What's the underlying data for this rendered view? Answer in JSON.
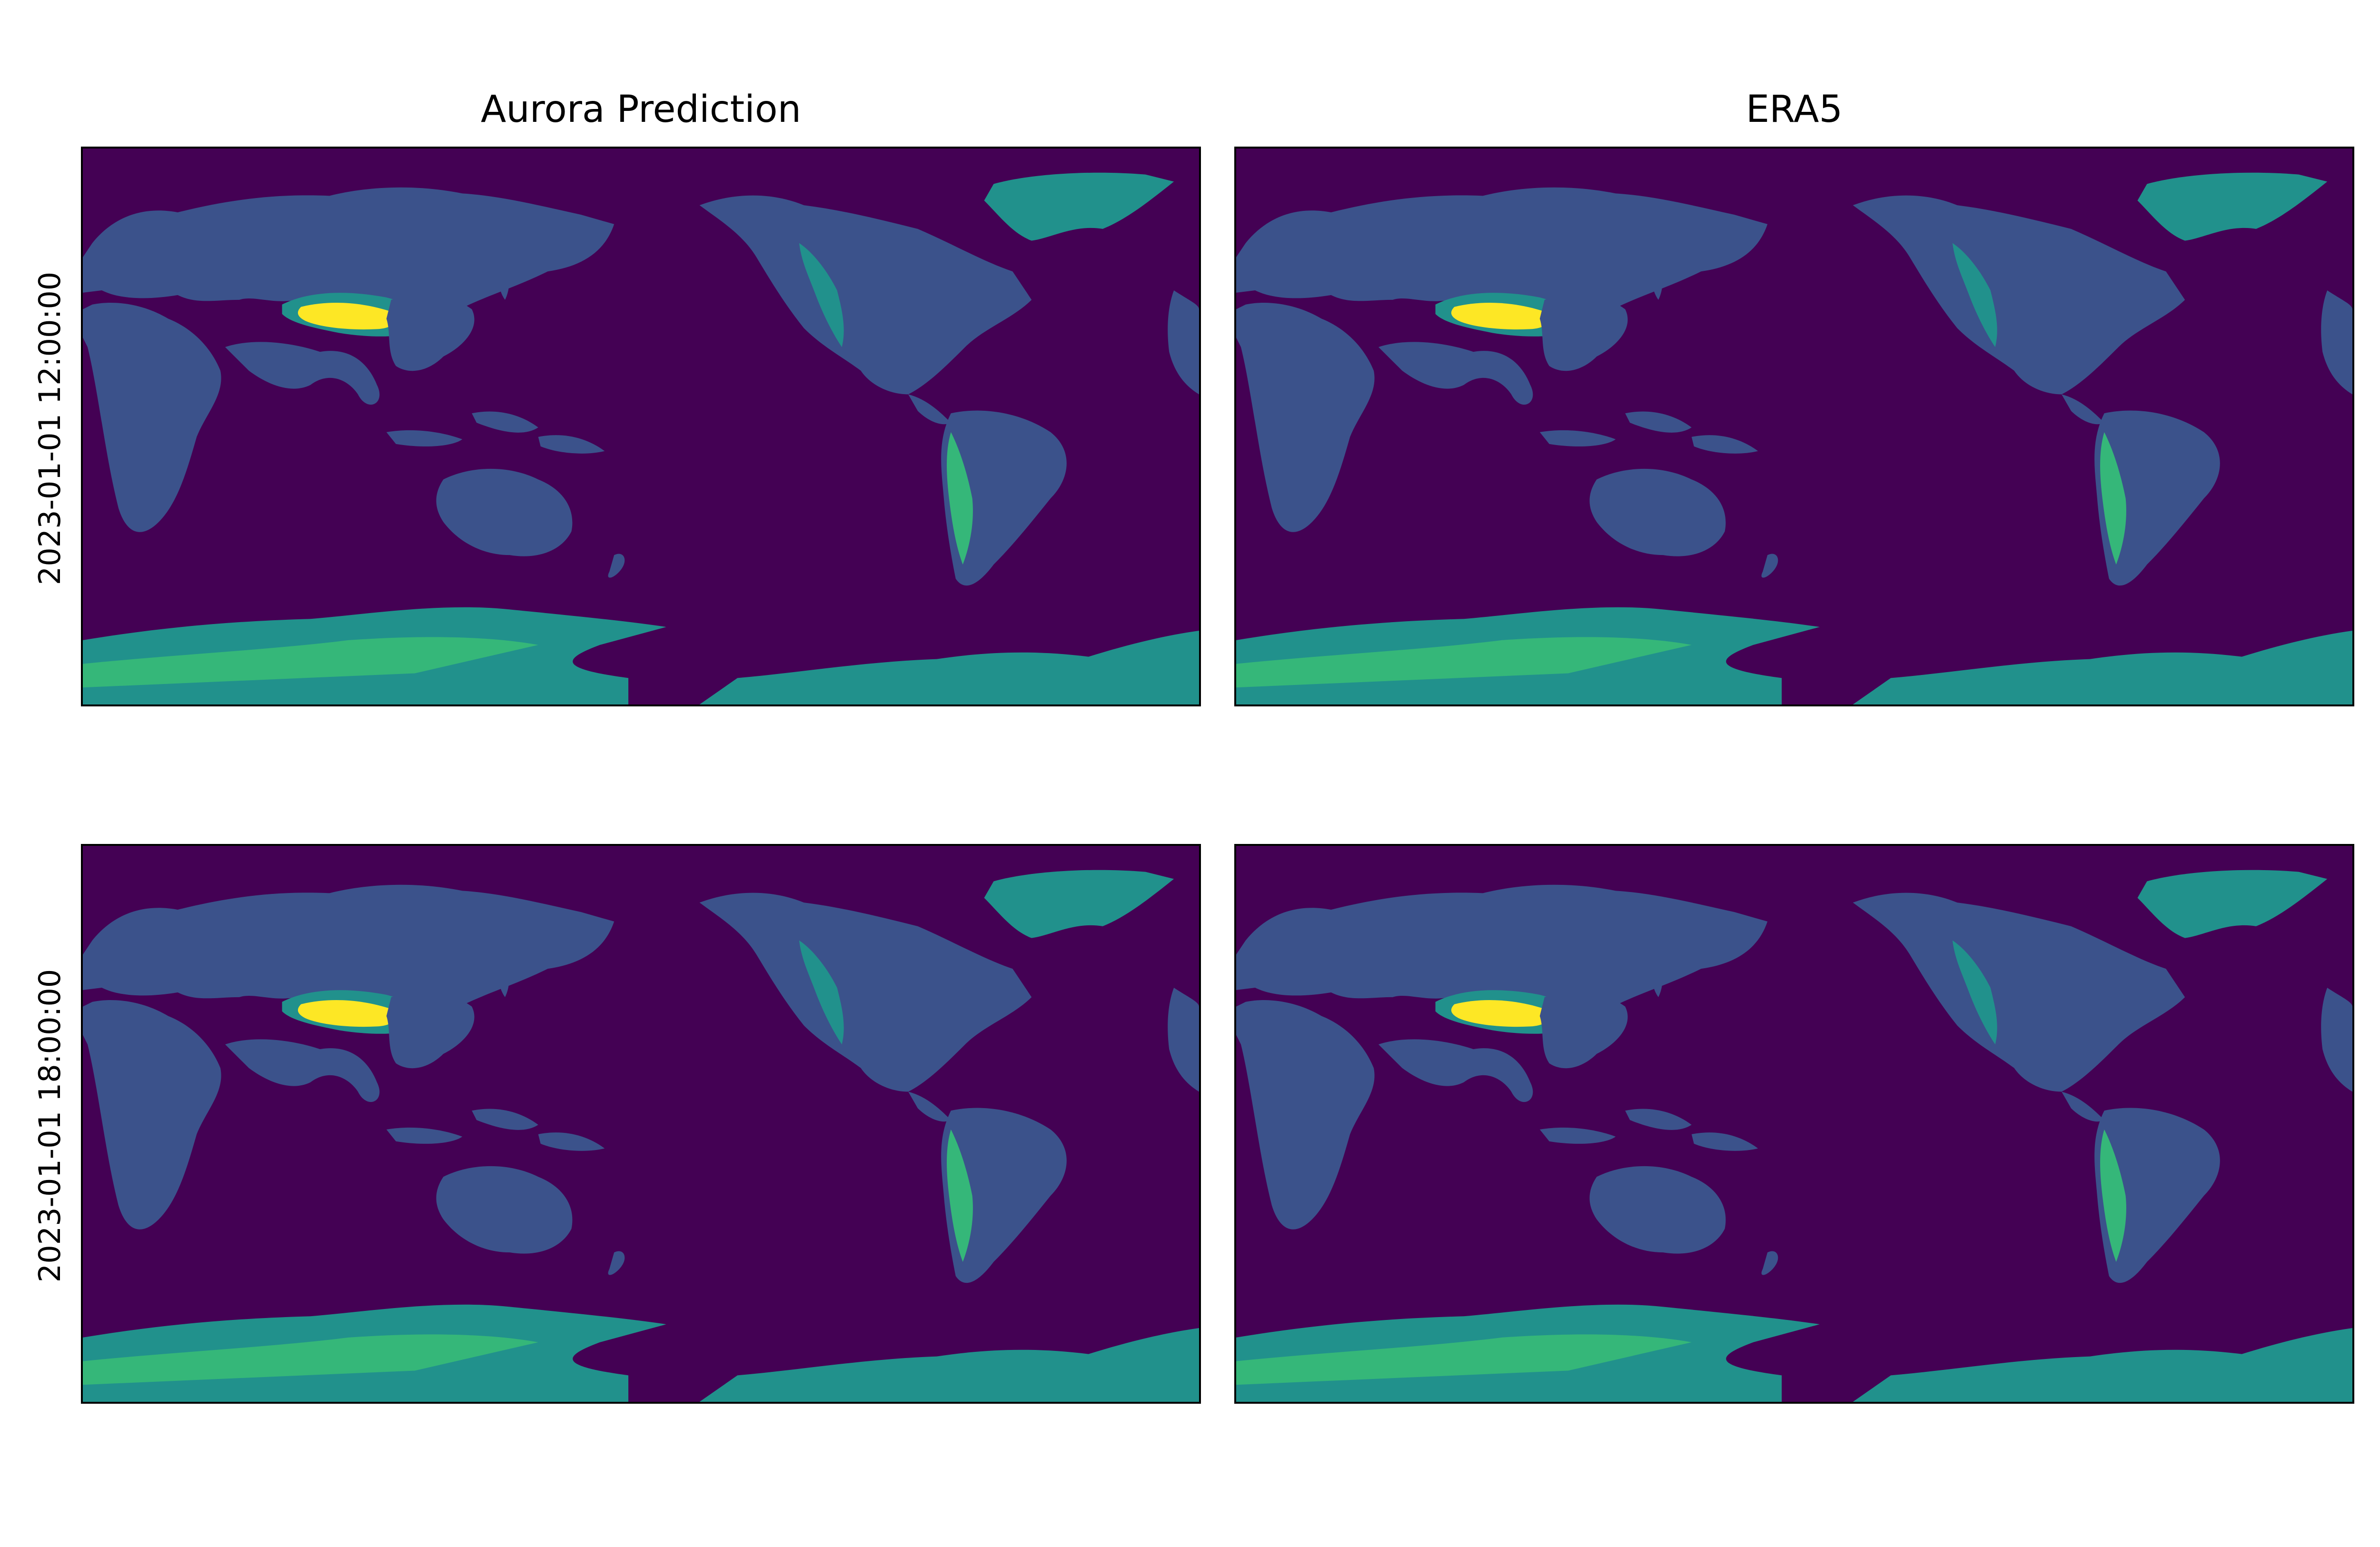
{
  "figure": {
    "columns": [
      {
        "title": "Aurora Prediction"
      },
      {
        "title": "ERA5"
      }
    ],
    "rows": [
      {
        "label": "2023-01-01 12:00:00"
      },
      {
        "label": "2023-01-01 18:00:00"
      }
    ],
    "colormap": "viridis",
    "colors": {
      "ocean": "#440154",
      "low_land": "#3b528b",
      "mid_land": "#21918c",
      "high_ice": "#35b779",
      "peak": "#fde725",
      "frame": "#000000"
    }
  }
}
